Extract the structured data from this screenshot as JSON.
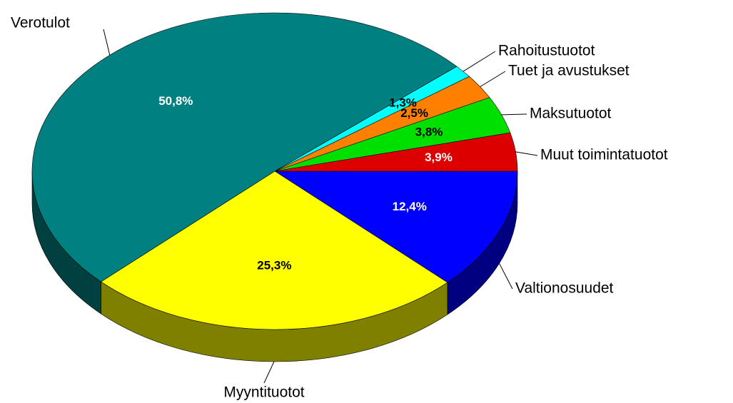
{
  "chart_data": {
    "type": "pie",
    "categories": [
      "Valtionosuudet",
      "Myyntituotot",
      "Verotulot",
      "Rahoitustuotot",
      "Tuet ja avustukset",
      "Maksutuotot",
      "Muut toimintatuotot"
    ],
    "values": [
      12.4,
      25.3,
      50.8,
      1.3,
      2.5,
      3.8,
      3.9
    ],
    "value_labels": [
      "12,4%",
      "25,3%",
      "50,8%",
      "1,3%",
      "2,5%",
      "3,8%",
      "3,9%"
    ],
    "colors": [
      "#0000ff",
      "#ffff00",
      "#008080",
      "#00ffff",
      "#ff8000",
      "#00e000",
      "#dd0000"
    ]
  }
}
